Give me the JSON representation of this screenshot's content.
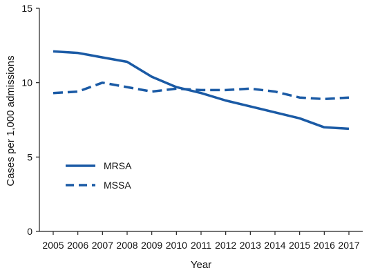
{
  "chart_data": {
    "type": "line",
    "title": "",
    "xlabel": "Year",
    "ylabel": "Cases per 1,000 admissions",
    "x": [
      "2005",
      "2006",
      "2007",
      "2008",
      "2009",
      "2010",
      "2011",
      "2012",
      "2013",
      "2014",
      "2015",
      "2016",
      "2017"
    ],
    "ylim": [
      0,
      15
    ],
    "yticks": [
      0,
      5,
      10,
      15
    ],
    "grid": false,
    "legend": "center-left",
    "line_color": "#1a5aa5",
    "series": [
      {
        "name": "MRSA",
        "style": "solid",
        "values": [
          12.1,
          12.0,
          11.7,
          11.4,
          10.4,
          9.7,
          9.3,
          8.8,
          8.4,
          8.0,
          7.6,
          7.0,
          6.9
        ]
      },
      {
        "name": "MSSA",
        "style": "dashed",
        "values": [
          9.3,
          9.4,
          10.0,
          9.7,
          9.4,
          9.6,
          9.5,
          9.5,
          9.6,
          9.4,
          9.0,
          8.9,
          9.0
        ]
      }
    ]
  }
}
